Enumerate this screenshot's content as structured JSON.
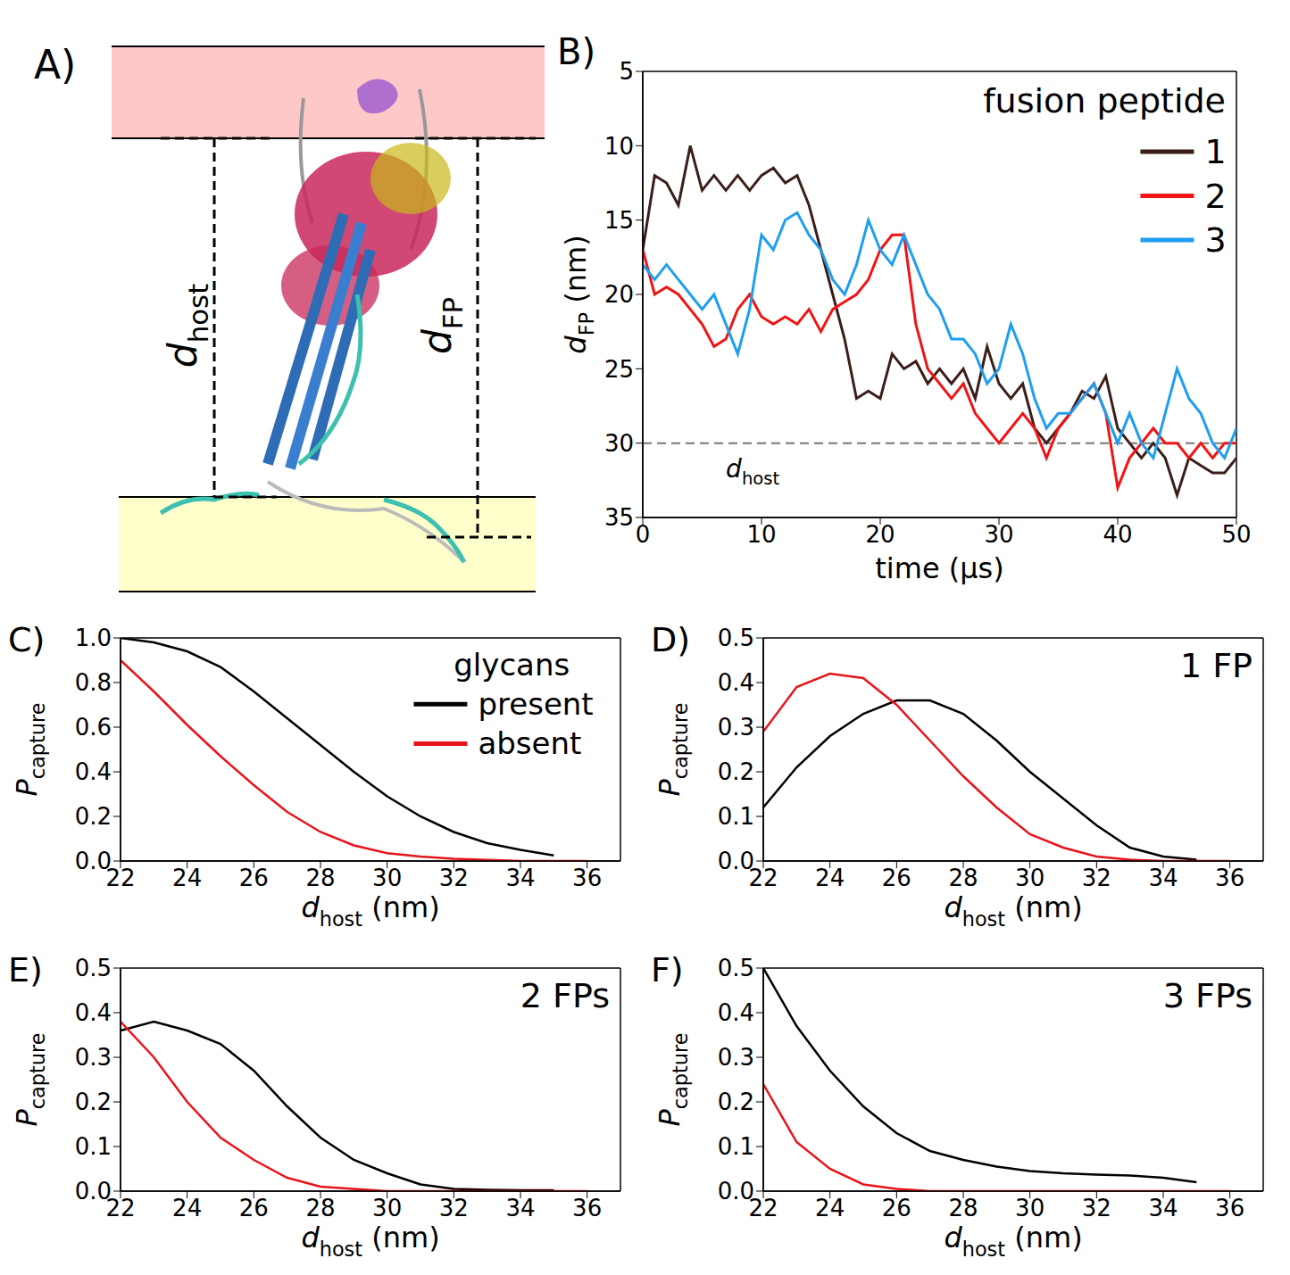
{
  "diagram": {
    "panel_label": "A)",
    "labels": [
      [
        "d",
        {
          "sub": "host"
        }
      ],
      [
        "d",
        {
          "sub": "FP"
        }
      ]
    ]
  },
  "chart_data": [
    {
      "panel_label": "B)",
      "type": "line",
      "xlabel": [
        "time (μs)"
      ],
      "ylabel": [
        "d",
        {
          "sub": "FP"
        },
        " (nm)"
      ],
      "x": [
        0,
        1,
        2,
        3,
        4,
        5,
        6,
        7,
        8,
        9,
        10,
        11,
        12,
        13,
        14,
        15,
        16,
        17,
        18,
        19,
        20,
        21,
        22,
        23,
        24,
        25,
        26,
        27,
        28,
        29,
        30,
        31,
        32,
        33,
        34,
        35,
        36,
        37,
        38,
        39,
        40,
        41,
        42,
        43,
        44,
        45,
        46,
        47,
        48,
        49,
        50
      ],
      "xlim": [
        0,
        50
      ],
      "xticks": [
        0,
        10,
        20,
        30,
        40,
        50
      ],
      "ylim": [
        35,
        5
      ],
      "yticks": [
        5,
        10,
        15,
        20,
        25,
        30,
        35
      ],
      "legend_title": "fusion peptide",
      "legend": "upper right",
      "series": [
        {
          "name": "1",
          "color": "#3b1e1a",
          "values": [
            17,
            12,
            12.5,
            14,
            10,
            13,
            12,
            13,
            12,
            13,
            12,
            11.5,
            12.5,
            12,
            14,
            17,
            20,
            23,
            27,
            26.5,
            27,
            24,
            25,
            24.5,
            26,
            25,
            26,
            25,
            27,
            23.5,
            26,
            27,
            26,
            29,
            30,
            29,
            28,
            26.5,
            27,
            25.5,
            29,
            30,
            31,
            30,
            31,
            33.5,
            31,
            31.5,
            32,
            32,
            31
          ]
        },
        {
          "name": "2",
          "color": "#f01414",
          "values": [
            17,
            20,
            19.5,
            20,
            21,
            22,
            23.5,
            23,
            21,
            20,
            21.5,
            22,
            21.5,
            22,
            21,
            22.5,
            21,
            20.5,
            20,
            19,
            17,
            16,
            16,
            22,
            25,
            26,
            27,
            26,
            28,
            29,
            30,
            29,
            28,
            29,
            31,
            29,
            28,
            27,
            26,
            28,
            33,
            31,
            30,
            29,
            30,
            30,
            31,
            30,
            31,
            30,
            30
          ]
        },
        {
          "name": "3",
          "color": "#1f9ef0",
          "values": [
            18,
            19,
            18,
            19,
            20,
            21,
            20,
            22,
            24,
            21,
            16,
            17,
            15,
            14.5,
            16,
            17,
            19,
            20,
            18,
            15,
            17,
            18,
            16,
            18,
            20,
            21,
            23,
            23,
            24,
            26,
            25,
            22,
            24,
            27,
            29,
            28,
            28,
            27,
            26,
            28,
            30,
            28,
            30,
            31,
            28,
            25,
            27,
            28,
            30,
            31,
            29
          ]
        }
      ],
      "annotations": [
        {
          "y": 30,
          "label": [
            "d",
            {
              "sub": "host"
            }
          ],
          "line_style": "dashed",
          "color": "#777777"
        }
      ]
    },
    {
      "panel_label": "C)",
      "type": "line",
      "xlabel": [
        "d",
        {
          "sub": "host"
        },
        " (nm)"
      ],
      "ylabel": [
        "P",
        {
          "sub": "capture"
        }
      ],
      "x": [
        22,
        23,
        24,
        25,
        26,
        27,
        28,
        29,
        30,
        31,
        32,
        33,
        34,
        35,
        36
      ],
      "xlim": [
        22,
        37
      ],
      "xticks": [
        22,
        24,
        26,
        28,
        30,
        32,
        34,
        36
      ],
      "ylim": [
        0,
        1
      ],
      "yticks": [
        {
          "value": 0,
          "label": "0.0"
        },
        {
          "value": 0.2,
          "label": "0.2"
        },
        {
          "value": 0.4,
          "label": "0.4"
        },
        {
          "value": 0.6,
          "label": "0.6"
        },
        {
          "value": 0.8,
          "label": "0.8"
        },
        {
          "value": 1,
          "label": "1.0"
        }
      ],
      "legend_title": "glycans",
      "legend": "upper right",
      "series": [
        {
          "name": "present",
          "color": "#000000",
          "values": [
            1.0,
            0.98,
            0.94,
            0.87,
            0.76,
            0.64,
            0.52,
            0.4,
            0.29,
            0.2,
            0.13,
            0.08,
            0.05,
            0.025,
            null
          ]
        },
        {
          "name": "absent",
          "color": "#e8141b",
          "values": [
            0.9,
            0.76,
            0.61,
            0.47,
            0.34,
            0.22,
            0.13,
            0.07,
            0.035,
            0.02,
            0.01,
            0.005,
            0,
            0,
            0
          ]
        }
      ]
    },
    {
      "panel_label": "D)",
      "type": "line",
      "xlabel": [
        "d",
        {
          "sub": "host"
        },
        " (nm)"
      ],
      "ylabel": [
        "P",
        {
          "sub": "capture"
        }
      ],
      "x": [
        22,
        23,
        24,
        25,
        26,
        27,
        28,
        29,
        30,
        31,
        32,
        33,
        34,
        35,
        36
      ],
      "xlim": [
        22,
        37
      ],
      "xticks": [
        22,
        24,
        26,
        28,
        30,
        32,
        34,
        36
      ],
      "ylim": [
        0,
        0.5
      ],
      "yticks": [
        {
          "value": 0,
          "label": "0.0"
        },
        0.1,
        0.2,
        0.3,
        0.4,
        0.5
      ],
      "annotations": [
        {
          "text": "1 FP"
        }
      ],
      "series": [
        {
          "name": "present",
          "color": "#000000",
          "values": [
            0.12,
            0.21,
            0.28,
            0.33,
            0.36,
            0.36,
            0.33,
            0.27,
            0.2,
            0.14,
            0.08,
            0.03,
            0.01,
            0.003,
            null
          ]
        },
        {
          "name": "absent",
          "color": "#e8141b",
          "values": [
            0.29,
            0.39,
            0.42,
            0.41,
            0.35,
            0.27,
            0.19,
            0.12,
            0.06,
            0.03,
            0.01,
            0.003,
            0,
            0,
            0
          ]
        }
      ]
    },
    {
      "panel_label": "E)",
      "type": "line",
      "xlabel": [
        "d",
        {
          "sub": "host"
        },
        " (nm)"
      ],
      "ylabel": [
        "P",
        {
          "sub": "capture"
        }
      ],
      "x": [
        22,
        23,
        24,
        25,
        26,
        27,
        28,
        29,
        30,
        31,
        32,
        33,
        34,
        35,
        36
      ],
      "xlim": [
        22,
        37
      ],
      "xticks": [
        22,
        24,
        26,
        28,
        30,
        32,
        34,
        36
      ],
      "ylim": [
        0,
        0.5
      ],
      "yticks": [
        {
          "value": 0,
          "label": "0.0"
        },
        0.1,
        0.2,
        0.3,
        0.4,
        0.5
      ],
      "annotations": [
        {
          "text": "2 FPs"
        }
      ],
      "series": [
        {
          "name": "present",
          "color": "#000000",
          "values": [
            0.36,
            0.38,
            0.36,
            0.33,
            0.27,
            0.19,
            0.12,
            0.07,
            0.04,
            0.015,
            0.005,
            0.003,
            0.002,
            0.002,
            null
          ]
        },
        {
          "name": "absent",
          "color": "#e8141b",
          "values": [
            0.38,
            0.3,
            0.2,
            0.12,
            0.07,
            0.03,
            0.01,
            0.005,
            0,
            0,
            0,
            0,
            0,
            0,
            0
          ]
        }
      ]
    },
    {
      "panel_label": "F)",
      "type": "line",
      "xlabel": [
        "d",
        {
          "sub": "host"
        },
        " (nm)"
      ],
      "ylabel": [
        "P",
        {
          "sub": "capture"
        }
      ],
      "x": [
        22,
        23,
        24,
        25,
        26,
        27,
        28,
        29,
        30,
        31,
        32,
        33,
        34,
        35,
        36
      ],
      "xlim": [
        22,
        37
      ],
      "xticks": [
        22,
        24,
        26,
        28,
        30,
        32,
        34,
        36
      ],
      "ylim": [
        0,
        0.5
      ],
      "yticks": [
        {
          "value": 0,
          "label": "0.0"
        },
        0.1,
        0.2,
        0.3,
        0.4,
        0.5
      ],
      "annotations": [
        {
          "text": "3 FPs"
        }
      ],
      "series": [
        {
          "name": "present",
          "color": "#000000",
          "values": [
            0.5,
            0.37,
            0.27,
            0.19,
            0.13,
            0.09,
            0.07,
            0.055,
            0.045,
            0.04,
            0.037,
            0.035,
            0.03,
            0.02,
            null
          ]
        },
        {
          "name": "absent",
          "color": "#e8141b",
          "values": [
            0.24,
            0.11,
            0.05,
            0.015,
            0.005,
            0,
            0,
            0,
            0,
            0,
            0,
            0,
            0,
            0,
            0
          ]
        }
      ]
    }
  ]
}
